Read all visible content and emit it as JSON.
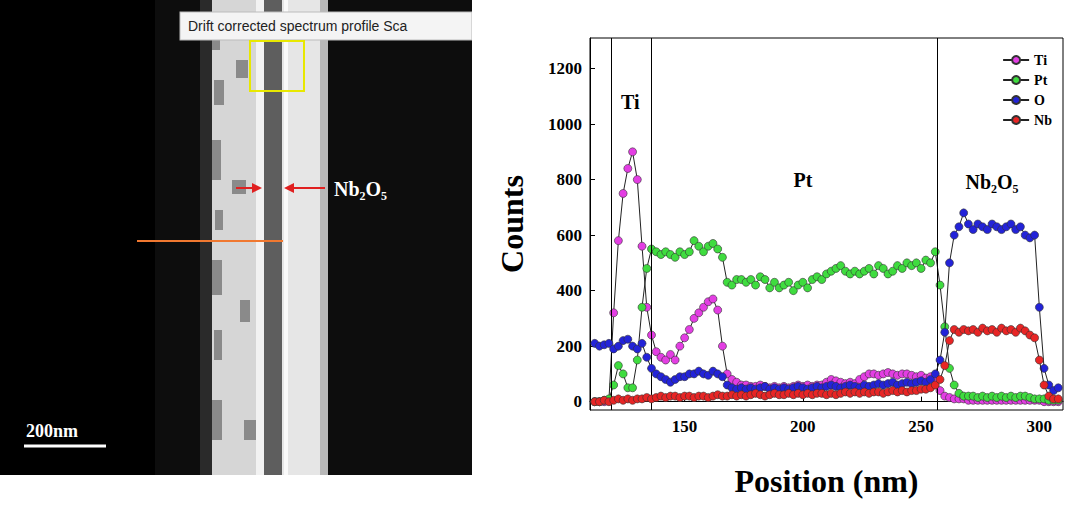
{
  "image": {
    "caption": "Drift corrected spectrum profile Sca",
    "label": "Nb₂O₅",
    "scale_bar": "200nm"
  },
  "chart_data": {
    "type": "line",
    "x_label": "Position (nm)",
    "y_label": "Counts",
    "xlim": [
      110,
      310
    ],
    "xticks": [
      150,
      200,
      250,
      300
    ],
    "ylim": [
      -30,
      1310
    ],
    "yticks": [
      0,
      200,
      400,
      600,
      800,
      1000,
      1200
    ],
    "grid": false,
    "legend": "upper right",
    "marker": "circle",
    "line_style": "solid",
    "vlines": [
      119,
      136,
      257
    ],
    "annotations": [
      {
        "text": "Ti",
        "x": 127,
        "y": 1080
      },
      {
        "text": "Pt",
        "x": 200,
        "y": 800
      },
      {
        "text": "Nb₂O₅",
        "x": 280,
        "y": 790
      }
    ],
    "x": [
      112,
      114,
      116,
      118,
      120,
      122,
      124,
      126,
      128,
      130,
      132,
      134,
      136,
      138,
      140,
      142,
      144,
      146,
      148,
      150,
      152,
      154,
      156,
      158,
      160,
      162,
      164,
      166,
      168,
      170,
      172,
      174,
      176,
      178,
      180,
      182,
      184,
      186,
      188,
      190,
      192,
      194,
      196,
      198,
      200,
      202,
      204,
      206,
      208,
      210,
      212,
      214,
      216,
      218,
      220,
      222,
      224,
      226,
      228,
      230,
      232,
      234,
      236,
      238,
      240,
      242,
      244,
      246,
      248,
      250,
      252,
      254,
      256,
      258,
      260,
      262,
      264,
      266,
      268,
      270,
      272,
      274,
      276,
      278,
      280,
      282,
      284,
      286,
      288,
      290,
      292,
      294,
      296,
      298,
      300,
      302,
      304,
      306,
      308
    ],
    "series": [
      {
        "name": "Ti",
        "color": "#e33ee3",
        "values": [
          0,
          0,
          0,
          5,
          320,
          580,
          750,
          840,
          900,
          800,
          560,
          340,
          240,
          180,
          160,
          150,
          170,
          150,
          200,
          230,
          260,
          300,
          320,
          340,
          360,
          370,
          330,
          200,
          100,
          80,
          70,
          60,
          60,
          55,
          55,
          60,
          55,
          50,
          55,
          50,
          55,
          50,
          55,
          60,
          55,
          60,
          55,
          60,
          60,
          70,
          80,
          75,
          70,
          65,
          70,
          65,
          80,
          90,
          100,
          100,
          95,
          100,
          105,
          100,
          95,
          100,
          100,
          95,
          90,
          95,
          85,
          90,
          80,
          40,
          20,
          15,
          10,
          10,
          10,
          5,
          5,
          5,
          5,
          5,
          5,
          5,
          5,
          5,
          5,
          5,
          5,
          5,
          5,
          5,
          5,
          0,
          0,
          0,
          0
        ]
      },
      {
        "name": "Pt",
        "color": "#3fdc3f",
        "values": [
          0,
          0,
          5,
          10,
          60,
          130,
          100,
          50,
          50,
          150,
          340,
          480,
          550,
          540,
          530,
          540,
          530,
          520,
          540,
          530,
          540,
          580,
          560,
          540,
          560,
          570,
          550,
          520,
          430,
          420,
          440,
          440,
          430,
          440,
          420,
          450,
          440,
          410,
          430,
          410,
          420,
          430,
          400,
          420,
          430,
          410,
          440,
          450,
          440,
          460,
          470,
          480,
          490,
          470,
          460,
          470,
          460,
          470,
          480,
          460,
          490,
          480,
          460,
          470,
          490,
          480,
          500,
          490,
          500,
          480,
          510,
          500,
          540,
          420,
          270,
          120,
          60,
          30,
          20,
          20,
          20,
          15,
          20,
          15,
          20,
          15,
          20,
          15,
          20,
          15,
          20,
          20,
          15,
          10,
          10,
          10,
          5,
          5,
          5
        ]
      },
      {
        "name": "O",
        "color": "#2323d8",
        "values": [
          210,
          200,
          205,
          210,
          190,
          200,
          220,
          225,
          200,
          190,
          210,
          160,
          120,
          100,
          90,
          80,
          70,
          80,
          90,
          90,
          100,
          100,
          110,
          100,
          95,
          110,
          100,
          90,
          60,
          50,
          45,
          50,
          45,
          50,
          45,
          50,
          55,
          45,
          50,
          45,
          50,
          45,
          50,
          55,
          50,
          45,
          50,
          55,
          50,
          55,
          60,
          55,
          50,
          55,
          60,
          55,
          50,
          60,
          55,
          60,
          65,
          60,
          65,
          70,
          60,
          65,
          70,
          65,
          70,
          75,
          70,
          80,
          100,
          150,
          250,
          500,
          600,
          630,
          680,
          640,
          620,
          640,
          630,
          620,
          640,
          630,
          620,
          630,
          640,
          620,
          630,
          600,
          590,
          600,
          340,
          120,
          60,
          40,
          50
        ]
      },
      {
        "name": "Nb",
        "color": "#e82525",
        "values": [
          0,
          0,
          5,
          0,
          5,
          10,
          5,
          10,
          5,
          10,
          10,
          15,
          10,
          15,
          20,
          15,
          20,
          20,
          15,
          20,
          20,
          15,
          20,
          20,
          15,
          20,
          25,
          20,
          20,
          25,
          20,
          25,
          20,
          25,
          30,
          25,
          20,
          25,
          30,
          25,
          25,
          30,
          25,
          30,
          25,
          30,
          25,
          30,
          30,
          25,
          30,
          25,
          30,
          35,
          30,
          35,
          30,
          35,
          30,
          35,
          35,
          30,
          35,
          40,
          35,
          40,
          35,
          40,
          40,
          45,
          45,
          50,
          60,
          80,
          130,
          220,
          260,
          250,
          260,
          255,
          260,
          250,
          265,
          255,
          260,
          250,
          265,
          255,
          260,
          250,
          265,
          255,
          240,
          230,
          150,
          60,
          20,
          10,
          10
        ]
      }
    ]
  }
}
